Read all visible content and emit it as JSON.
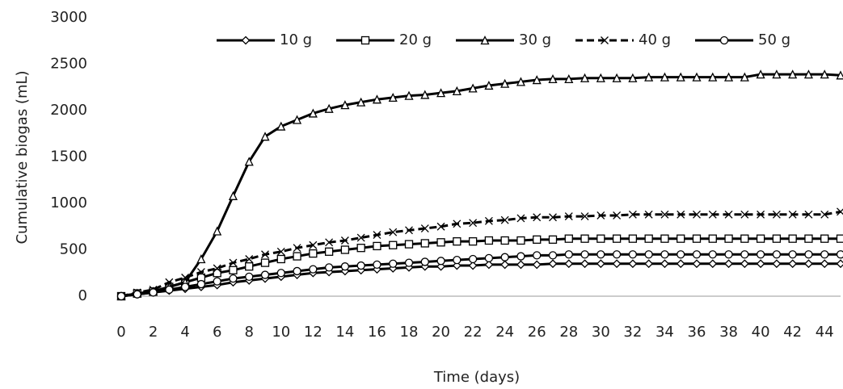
{
  "chart_data": {
    "type": "line",
    "x_label": "Time (days)",
    "y_label": "Cumulative biogas (mL)",
    "x": [
      0,
      1,
      2,
      3,
      4,
      5,
      6,
      7,
      8,
      9,
      10,
      11,
      12,
      13,
      14,
      15,
      16,
      17,
      18,
      19,
      20,
      21,
      22,
      23,
      24,
      25,
      26,
      27,
      28,
      29,
      30,
      31,
      32,
      33,
      34,
      35,
      36,
      37,
      38,
      39,
      40,
      41,
      42,
      43,
      44,
      45
    ],
    "xlim": [
      0,
      45
    ],
    "xticks": [
      0,
      2,
      4,
      6,
      8,
      10,
      12,
      14,
      16,
      18,
      20,
      22,
      24,
      26,
      28,
      30,
      32,
      34,
      36,
      38,
      40,
      42,
      44
    ],
    "ylim": [
      0,
      3000
    ],
    "yticks": [
      0,
      500,
      1000,
      1500,
      2000,
      2500,
      3000
    ],
    "grid": false,
    "legend": "top",
    "series": [
      {
        "name": "10 g",
        "color": "#000000",
        "marker": "diamond",
        "dash": false,
        "values": [
          0,
          20,
          40,
          60,
          80,
          100,
          120,
          150,
          170,
          190,
          210,
          230,
          250,
          260,
          270,
          280,
          290,
          300,
          310,
          320,
          320,
          330,
          330,
          340,
          340,
          340,
          340,
          350,
          350,
          350,
          350,
          350,
          350,
          350,
          350,
          350,
          350,
          350,
          350,
          350,
          350,
          350,
          350,
          350,
          350,
          350
        ]
      },
      {
        "name": "20 g",
        "color": "#000000",
        "marker": "square",
        "dash": false,
        "values": [
          0,
          30,
          50,
          100,
          150,
          200,
          250,
          280,
          320,
          360,
          400,
          430,
          460,
          480,
          500,
          520,
          540,
          550,
          560,
          570,
          580,
          590,
          590,
          600,
          600,
          600,
          610,
          610,
          620,
          620,
          620,
          620,
          620,
          620,
          620,
          620,
          620,
          620,
          620,
          620,
          620,
          620,
          620,
          620,
          620,
          620
        ]
      },
      {
        "name": "30 g",
        "color": "#000000",
        "marker": "triangle",
        "dash": false,
        "values": [
          0,
          30,
          50,
          100,
          150,
          400,
          700,
          1080,
          1450,
          1720,
          1830,
          1900,
          1970,
          2020,
          2060,
          2090,
          2120,
          2140,
          2160,
          2170,
          2190,
          2210,
          2240,
          2270,
          2290,
          2310,
          2330,
          2340,
          2340,
          2350,
          2350,
          2350,
          2350,
          2360,
          2360,
          2360,
          2360,
          2360,
          2360,
          2360,
          2390,
          2390,
          2390,
          2390,
          2390,
          2380
        ]
      },
      {
        "name": "40 g",
        "color": "#000000",
        "marker": "cross",
        "dash": true,
        "values": [
          0,
          40,
          70,
          150,
          200,
          260,
          300,
          360,
          400,
          450,
          480,
          520,
          550,
          580,
          600,
          630,
          660,
          690,
          710,
          730,
          750,
          780,
          790,
          810,
          820,
          840,
          850,
          850,
          860,
          860,
          870,
          870,
          880,
          880,
          880,
          880,
          880,
          880,
          880,
          880,
          880,
          880,
          880,
          880,
          880,
          910
        ]
      },
      {
        "name": "50 g",
        "color": "#000000",
        "marker": "circle",
        "dash": false,
        "values": [
          0,
          20,
          40,
          70,
          100,
          130,
          160,
          190,
          210,
          230,
          250,
          270,
          290,
          310,
          320,
          330,
          340,
          350,
          360,
          370,
          380,
          390,
          400,
          410,
          420,
          430,
          440,
          440,
          450,
          450,
          450,
          450,
          450,
          450,
          450,
          450,
          450,
          450,
          450,
          450,
          450,
          450,
          450,
          450,
          450,
          450
        ]
      }
    ]
  }
}
